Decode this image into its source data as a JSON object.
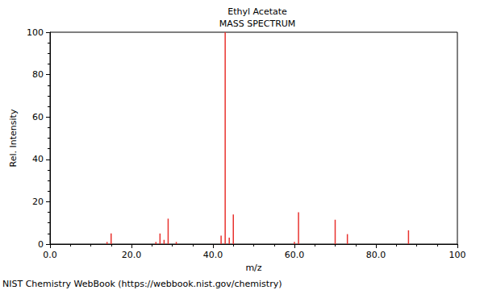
{
  "chart_data": {
    "type": "bar",
    "title": "Ethyl Acetate",
    "subtitle": "MASS SPECTRUM",
    "x_label": "m/z",
    "y_label": "Rel. Intensity",
    "annotations": [
      "NIST Chemistry WebBook (https://webbook.nist.gov/chemistry)"
    ],
    "x": [
      14,
      15,
      26,
      27,
      28,
      29,
      31,
      42,
      43,
      44,
      45,
      60,
      61,
      70,
      73,
      88
    ],
    "values": [
      1,
      5,
      1,
      5,
      2,
      12,
      1,
      4,
      100,
      3,
      14,
      1,
      15,
      11.5,
      4.7,
      6.5
    ],
    "color": "#e8322e",
    "xlim": [
      0,
      100
    ],
    "xticks": [
      {
        "value": 0,
        "label": "0.0"
      },
      {
        "value": 20,
        "label": "20.0"
      },
      {
        "value": 40,
        "label": "40.0"
      },
      {
        "value": 60,
        "label": "60.0"
      },
      {
        "value": 80,
        "label": "80.0"
      },
      {
        "value": 100,
        "label": "100"
      }
    ],
    "ylim": [
      0,
      100
    ],
    "yticks": [
      0,
      20,
      40,
      60,
      80,
      100
    ],
    "grid": false
  }
}
